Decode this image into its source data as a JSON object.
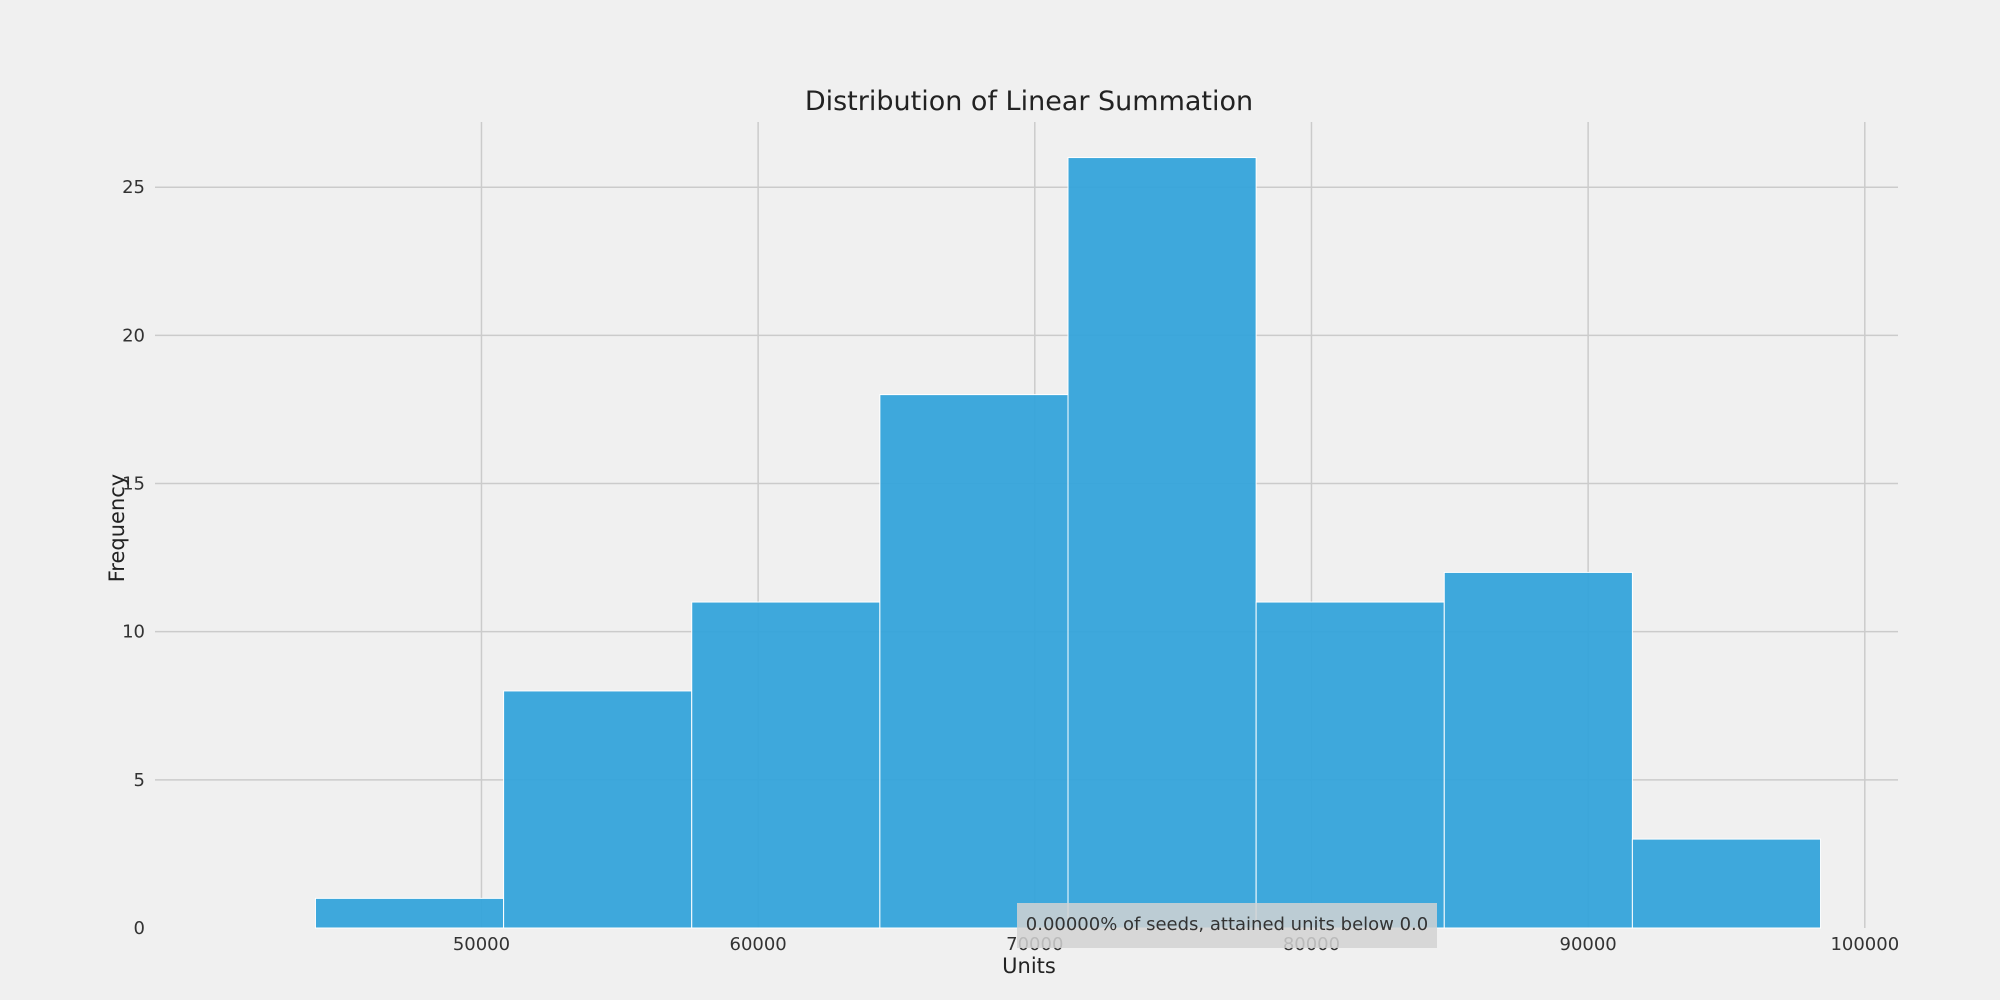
{
  "chart_data": {
    "type": "bar",
    "title": "Distribution of Linear Summation",
    "xlabel": "Units",
    "ylabel": "Frequency",
    "bin_edges": [
      44000,
      50800,
      57600,
      64400,
      71200,
      78000,
      84800,
      91600,
      98400
    ],
    "values": [
      1,
      8,
      11,
      18,
      26,
      11,
      12,
      3
    ],
    "xlim": [
      38200,
      101200
    ],
    "ylim": [
      0,
      27.2
    ],
    "x_ticks": [
      50000,
      60000,
      70000,
      80000,
      90000,
      100000
    ],
    "y_ticks": [
      0,
      5,
      10,
      15,
      20,
      25
    ],
    "grid": true,
    "bar_color": "#30a2da",
    "annotation": "0.00000% of seeds, attained units below 0.0"
  }
}
